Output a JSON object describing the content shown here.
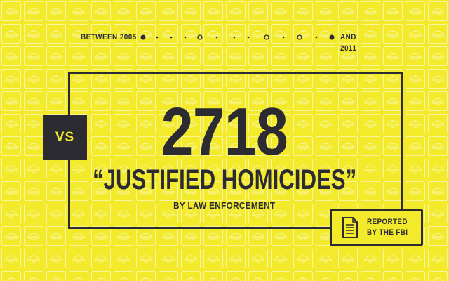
{
  "timeline": {
    "start_label": "BETWEEN 2005",
    "end_label": "AND 2011"
  },
  "comparison": {
    "badge": "VS"
  },
  "headline": {
    "number": "2718",
    "title": "“JUSTIFIED HOMICIDES”",
    "subtitle": "BY LAW ENFORCEMENT"
  },
  "source": {
    "line1": "REPORTED",
    "line2": "BY THE FBI",
    "icon": "document-icon"
  },
  "colors": {
    "background": "#f2ea2a",
    "pattern": "#ffffff",
    "ink": "#2b2b31"
  },
  "decor": {
    "pattern_icon": "police-cap-icon"
  }
}
